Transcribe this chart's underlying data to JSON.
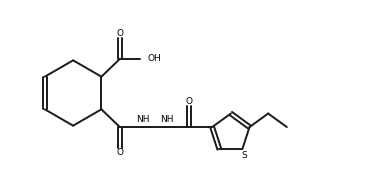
{
  "background_color": "#ffffff",
  "line_color": "#1a1a1a",
  "line_width": 1.4,
  "figsize": [
    3.77,
    1.86
  ],
  "dpi": 100,
  "xlim": [
    0,
    10.5
  ],
  "ylim": [
    0,
    5.2
  ]
}
